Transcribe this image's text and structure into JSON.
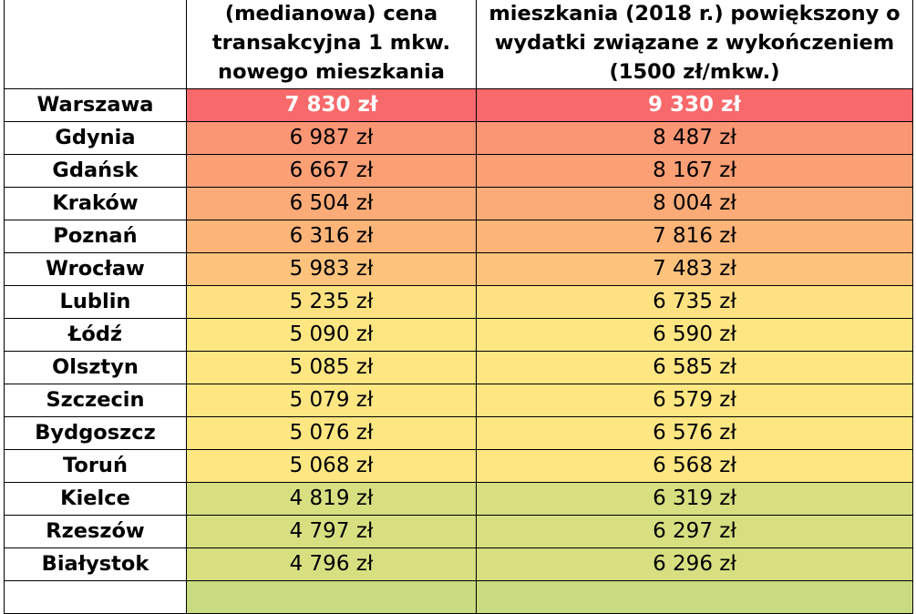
{
  "header": {
    "col1_lines": [],
    "col2_lines": [
      "(medianowa) cena",
      "transakcyjna 1 mkw.",
      "nowego mieszkania"
    ],
    "col3_lines": [
      "mieszkania (2018 r.) powiększony o",
      "wydatki związane z wykończeniem",
      "(1500 zł/mkw.)"
    ]
  },
  "rows": [
    {
      "city": "Warszawa",
      "price": "7 830 zł",
      "price_finished": "9 330 zł",
      "color": "#f8696b"
    },
    {
      "city": "Gdynia",
      "price": "6 987 zł",
      "price_finished": "8 487 zł",
      "color": "#fa9673"
    },
    {
      "city": "Gdańsk",
      "price": "6 667 zł",
      "price_finished": "8 167 zł",
      "color": "#fb9f75"
    },
    {
      "city": "Kraków",
      "price": "6 504 zł",
      "price_finished": "8 004 zł",
      "color": "#fbab77"
    },
    {
      "city": "Poznań",
      "price": "6 316 zł",
      "price_finished": "7 816 zł",
      "color": "#fcb479"
    },
    {
      "city": "Wrocław",
      "price": "5 983 zł",
      "price_finished": "7 483 zł",
      "color": "#fdc27c"
    },
    {
      "city": "Lublin",
      "price": "5 235 zł",
      "price_finished": "6 735 zł",
      "color": "#fee282"
    },
    {
      "city": "Łódź",
      "price": "5 090 zł",
      "price_finished": "6 590 zł",
      "color": "#fee683"
    },
    {
      "city": "Olsztyn",
      "price": "5 085 zł",
      "price_finished": "6 585 zł",
      "color": "#fee683"
    },
    {
      "city": "Szczecin",
      "price": "5 079 zł",
      "price_finished": "6 579 zł",
      "color": "#fee683"
    },
    {
      "city": "Bydgoszcz",
      "price": "5 076 zł",
      "price_finished": "6 576 zł",
      "color": "#fee683"
    },
    {
      "city": "Toruń",
      "price": "5 068 zł",
      "price_finished": "6 568 zł",
      "color": "#fee683"
    },
    {
      "city": "Kielce",
      "price": "4 819 zł",
      "price_finished": "6 319 zł",
      "color": "#d7df81"
    },
    {
      "city": "Rzeszów",
      "price": "4 797 zł",
      "price_finished": "6 297 zł",
      "color": "#d7df81"
    },
    {
      "city": "Białystok",
      "price": "4 796 zł",
      "price_finished": "6 296 zł",
      "color": "#d7df81"
    },
    {
      "city": "",
      "price": "",
      "price_finished": "",
      "color": "#c8db80"
    }
  ],
  "icons": {
    "sort": "sort-down-icon"
  }
}
